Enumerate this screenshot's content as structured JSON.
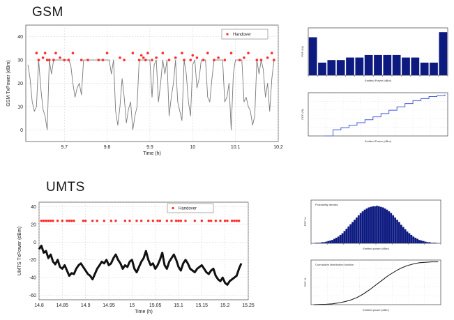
{
  "sections": {
    "gsm_title": "GSM",
    "umts_title": "UMTS"
  },
  "colors": {
    "gsm_trace": "#7a7a7a",
    "umts_trace": "#111111",
    "handover_marker": "#ff2a2a",
    "bar_fill": "#0d1a80",
    "gsm_cdf_line": "#4a5ad8",
    "umts_cdf_line": "#222222",
    "grid": "#cfcfcf"
  },
  "chart_data": [
    {
      "id": "gsm-time-series",
      "type": "line",
      "xlabel": "Time (h)",
      "ylabel": "GSM TxPower (dBm)",
      "x_ticks": [
        "9.7",
        "9.8",
        "9.9",
        "10",
        "10.1",
        "10.2"
      ],
      "y_ticks": [
        "0",
        "10",
        "20",
        "30",
        "40"
      ],
      "xlim": [
        9.61,
        10.2
      ],
      "ylim": [
        -5,
        45
      ],
      "grid": true,
      "legend": {
        "position": "top-right",
        "entries": [
          "Handover"
        ]
      },
      "series": [
        {
          "name": "",
          "x": [
            9.615,
            9.62,
            9.625,
            9.63,
            9.635,
            9.64,
            9.645,
            9.65,
            9.655,
            9.66,
            9.665,
            9.67,
            9.675,
            9.68,
            9.685,
            9.69,
            9.695,
            9.7,
            9.705,
            9.71,
            9.715,
            9.72,
            9.725,
            9.73,
            9.735,
            9.74,
            9.745,
            9.75,
            9.755,
            9.76,
            9.765,
            9.77,
            9.775,
            9.78,
            9.785,
            9.79,
            9.795,
            9.8,
            9.805,
            9.81,
            9.815,
            9.82,
            9.825,
            9.83,
            9.835,
            9.84,
            9.845,
            9.85,
            9.855,
            9.86,
            9.865,
            9.87,
            9.875,
            9.88,
            9.885,
            9.89,
            9.895,
            9.9,
            9.905,
            9.91,
            9.915,
            9.92,
            9.925,
            9.93,
            9.935,
            9.94,
            9.945,
            9.95,
            9.955,
            9.96,
            9.965,
            9.97,
            9.975,
            9.98,
            9.985,
            9.99,
            9.995,
            10.0,
            10.005,
            10.01,
            10.015,
            10.02,
            10.025,
            10.03,
            10.035,
            10.04,
            10.045,
            10.05,
            10.055,
            10.06,
            10.065,
            10.07,
            10.075,
            10.08,
            10.085,
            10.09,
            10.095,
            10.1,
            10.105,
            10.11,
            10.115,
            10.12,
            10.125,
            10.13,
            10.135,
            10.14,
            10.145,
            10.15,
            10.155,
            10.16,
            10.165,
            10.17,
            10.175,
            10.18,
            10.185,
            10.19
          ],
          "y": [
            28,
            22,
            12,
            8,
            10,
            30,
            18,
            9,
            6,
            0,
            30,
            24,
            30,
            30,
            30,
            30,
            30,
            30,
            30,
            30,
            28,
            20,
            14,
            18,
            20,
            15,
            30,
            30,
            30,
            30,
            30,
            30,
            30,
            30,
            30,
            30,
            30,
            30,
            30,
            24,
            30,
            8,
            2,
            10,
            22,
            14,
            3,
            9,
            12,
            0,
            6,
            10,
            30,
            30,
            30,
            30,
            30,
            30,
            14,
            28,
            30,
            12,
            20,
            30,
            24,
            30,
            6,
            14,
            20,
            30,
            12,
            8,
            4,
            30,
            24,
            12,
            6,
            28,
            30,
            18,
            22,
            30,
            30,
            30,
            14,
            12,
            22,
            30,
            30,
            30,
            30,
            30,
            12,
            14,
            20,
            0,
            24,
            30,
            30,
            30,
            30,
            12,
            14,
            10,
            8,
            2,
            6,
            30,
            24,
            30,
            26,
            14,
            20,
            8,
            22,
            30
          ]
        }
      ],
      "handover_points": {
        "x": [
          9.635,
          9.64,
          9.65,
          9.655,
          9.66,
          9.665,
          9.675,
          9.68,
          9.69,
          9.7,
          9.71,
          9.72,
          9.74,
          9.755,
          9.78,
          9.79,
          9.8,
          9.83,
          9.84,
          9.86,
          9.875,
          9.88,
          9.885,
          9.89,
          9.895,
          9.905,
          9.915,
          9.93,
          9.945,
          9.96,
          9.975,
          9.98,
          9.995,
          10.0,
          10.01,
          10.025,
          10.035,
          10.05,
          10.06,
          10.075,
          10.09,
          10.11,
          10.12,
          10.13,
          10.15,
          10.16,
          10.175,
          10.185,
          10.19
        ],
        "y": [
          33,
          30,
          31,
          33,
          30,
          30,
          30,
          33,
          31,
          30,
          30,
          33,
          30,
          30,
          30,
          30,
          33,
          31,
          30,
          33,
          30,
          32,
          31,
          30,
          33,
          30,
          31,
          33,
          30,
          31,
          33,
          30,
          30,
          32,
          31,
          30,
          33,
          30,
          31,
          30,
          33,
          30,
          31,
          33,
          30,
          30,
          31,
          33,
          30
        ]
      }
    },
    {
      "id": "gsm-pdf",
      "type": "bar",
      "xlabel": "Emitted Power (dBm)",
      "ylabel": "PDF (%)",
      "tick_labels_legible": false,
      "values": [
        15,
        5,
        6,
        6,
        7,
        7,
        8,
        8,
        8,
        8,
        7,
        7,
        5,
        5,
        17
      ]
    },
    {
      "id": "gsm-cdf",
      "type": "line",
      "xlabel": "Emitted Power (dBm)",
      "ylabel": "CDF (%)",
      "tick_labels_legible": false,
      "series": [
        {
          "name": "",
          "x": [
            0,
            1,
            2,
            3,
            4,
            5,
            6,
            7,
            8,
            9,
            10,
            11,
            12,
            13,
            14,
            15
          ],
          "y": [
            0,
            15,
            20,
            26,
            32,
            39,
            46,
            54,
            62,
            70,
            78,
            85,
            90,
            95,
            97,
            100
          ]
        }
      ]
    },
    {
      "id": "umts-time-series",
      "type": "line",
      "xlabel": "Time (h)",
      "ylabel": "UMTS TxPower (dBm)",
      "x_ticks": [
        "14.8",
        "14.85",
        "14.9",
        "14.95",
        "15",
        "15.05",
        "15.1",
        "15.15",
        "15.2",
        "15.25"
      ],
      "y_ticks": [
        "-60",
        "-40",
        "-20",
        "0",
        "20",
        "40"
      ],
      "xlim": [
        14.8,
        15.25
      ],
      "ylim": [
        -65,
        45
      ],
      "grid": true,
      "legend": {
        "position": "top-right",
        "entries": [
          "Handover"
        ]
      },
      "series": [
        {
          "name": "",
          "x": [
            14.8,
            14.805,
            14.81,
            14.815,
            14.82,
            14.825,
            14.83,
            14.835,
            14.84,
            14.845,
            14.85,
            14.855,
            14.86,
            14.865,
            14.87,
            14.875,
            14.88,
            14.885,
            14.89,
            14.895,
            14.9,
            14.905,
            14.91,
            14.915,
            14.92,
            14.925,
            14.93,
            14.935,
            14.94,
            14.945,
            14.95,
            14.955,
            14.96,
            14.965,
            14.97,
            14.975,
            14.98,
            14.985,
            14.99,
            14.995,
            15.0,
            15.005,
            15.01,
            15.015,
            15.02,
            15.025,
            15.03,
            15.035,
            15.04,
            15.045,
            15.05,
            15.055,
            15.06,
            15.065,
            15.07,
            15.075,
            15.08,
            15.085,
            15.09,
            15.095,
            15.1,
            15.105,
            15.11,
            15.115,
            15.12,
            15.125,
            15.13,
            15.135,
            15.14,
            15.145,
            15.15,
            15.155,
            15.16,
            15.165,
            15.17,
            15.175,
            15.18,
            15.185,
            15.19,
            15.195,
            15.2,
            15.205,
            15.21,
            15.215,
            15.22,
            15.225,
            15.23,
            15.235
          ],
          "y": [
            -8,
            -4,
            -12,
            -10,
            -18,
            -14,
            -22,
            -25,
            -20,
            -28,
            -30,
            -26,
            -32,
            -38,
            -35,
            -36,
            -30,
            -26,
            -24,
            -28,
            -32,
            -36,
            -38,
            -42,
            -36,
            -30,
            -26,
            -22,
            -24,
            -20,
            -26,
            -24,
            -18,
            -14,
            -20,
            -24,
            -30,
            -26,
            -28,
            -22,
            -20,
            -30,
            -34,
            -28,
            -22,
            -18,
            -10,
            -20,
            -26,
            -24,
            -30,
            -26,
            -20,
            -12,
            -26,
            -30,
            -22,
            -18,
            -14,
            -20,
            -28,
            -32,
            -24,
            -20,
            -24,
            -30,
            -32,
            -34,
            -30,
            -28,
            -26,
            -30,
            -34,
            -36,
            -32,
            -30,
            -38,
            -42,
            -44,
            -40,
            -46,
            -48,
            -44,
            -42,
            -40,
            -38,
            -30,
            -24
          ]
        }
      ],
      "handover_points": {
        "x": [
          14.805,
          14.81,
          14.815,
          14.82,
          14.825,
          14.83,
          14.84,
          14.85,
          14.86,
          14.865,
          14.87,
          14.875,
          14.895,
          14.9,
          14.915,
          14.925,
          14.94,
          14.955,
          14.965,
          14.985,
          14.995,
          15.01,
          15.02,
          15.035,
          15.045,
          15.055,
          15.06,
          15.075,
          15.085,
          15.095,
          15.1,
          15.105,
          15.115,
          15.135,
          15.15,
          15.165,
          15.17,
          15.18,
          15.19,
          15.2,
          15.205,
          15.215,
          15.22,
          15.225,
          15.23
        ],
        "y": [
          24,
          24,
          24,
          24,
          24,
          24,
          24,
          24,
          24,
          24,
          24,
          24,
          24,
          24,
          24,
          24,
          24,
          24,
          24,
          24,
          24,
          24,
          24,
          24,
          24,
          24,
          24,
          24,
          24,
          24,
          24,
          24,
          24,
          24,
          24,
          24,
          24,
          24,
          24,
          24,
          24,
          24,
          24,
          24,
          24
        ]
      }
    },
    {
      "id": "umts-pdf",
      "type": "bar",
      "xlabel": "Emitted power (dBm)",
      "ylabel": "PDF %",
      "annotation": "Probability density",
      "tick_labels_legible": false,
      "values": [
        0,
        0,
        1,
        1,
        1,
        2,
        2,
        3,
        4,
        5,
        6,
        8,
        10,
        12,
        15,
        18,
        22,
        26,
        30,
        34,
        38,
        42,
        46,
        50,
        54,
        57,
        60,
        62,
        64,
        65,
        66,
        66,
        67,
        66,
        65,
        64,
        62,
        60,
        57,
        54,
        50,
        46,
        42,
        38,
        33,
        29,
        25,
        21,
        18,
        15,
        12,
        10,
        8,
        6,
        5,
        4,
        3,
        2,
        2,
        1,
        1,
        1,
        0,
        0
      ]
    },
    {
      "id": "umts-cdf",
      "type": "line",
      "xlabel": "Emitted power (dBm)",
      "ylabel": "CDF %",
      "annotation": "Cumulative distribution function",
      "tick_labels_legible": false,
      "series": [
        {
          "name": "",
          "x": [
            0,
            1,
            2,
            3,
            4,
            5,
            6,
            7,
            8,
            9,
            10,
            11,
            12,
            13,
            14,
            15,
            16,
            17,
            18,
            19,
            20
          ],
          "y": [
            0,
            0.5,
            1,
            2,
            4,
            7,
            11,
            17,
            25,
            35,
            46,
            57,
            68,
            77,
            85,
            91,
            95,
            98,
            99,
            100,
            100
          ]
        }
      ]
    }
  ]
}
